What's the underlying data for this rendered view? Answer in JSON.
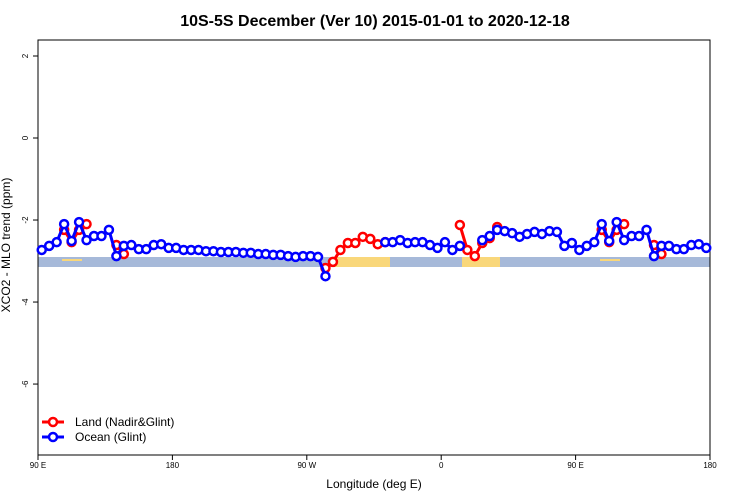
{
  "chart_data": {
    "type": "line",
    "title": "10S-5S December (Ver 10)   2015-01-01 to 2020-12-18",
    "x_label": "Longitude (deg E)",
    "y_label": "XCO2 - MLO trend (ppm)",
    "x": [
      92.5,
      97.5,
      102.5,
      107.5,
      112.5,
      117.5,
      122.5,
      127.5,
      132.5,
      137.5,
      142.5,
      147.5,
      152.5,
      157.5,
      162.5,
      167.5,
      172.5,
      177.5,
      182.5,
      187.5,
      192.5,
      197.5,
      202.5,
      207.5,
      212.5,
      217.5,
      222.5,
      227.5,
      232.5,
      237.5,
      242.5,
      247.5,
      252.5,
      257.5,
      262.5,
      267.5,
      272.5,
      277.5,
      282.5,
      287.5,
      292.5,
      297.5,
      302.5,
      307.5,
      312.5,
      317.5,
      322.5,
      327.5,
      332.5,
      337.5,
      342.5,
      347.5,
      352.5,
      357.5,
      362.5,
      367.5,
      372.5,
      377.5,
      382.5,
      387.5,
      392.5,
      397.5,
      402.5,
      407.5,
      412.5,
      417.5,
      422.5,
      427.5,
      432.5,
      437.5,
      442.5,
      447.5,
      452.5,
      457.5,
      462.5,
      467.5,
      472.5,
      477.5,
      482.5,
      487.5,
      492.5,
      497.5,
      502.5,
      507.5,
      512.5,
      517.5,
      522.5,
      527.5,
      532.5,
      537.5
    ],
    "series": [
      {
        "name": "Land (Nadir&Glint)",
        "color": "#ff0000",
        "values": [
          null,
          null,
          null,
          -2.24,
          -2.54,
          -2.24,
          -2.1,
          null,
          null,
          null,
          -2.61,
          -2.83,
          null,
          null,
          null,
          null,
          null,
          null,
          null,
          null,
          null,
          null,
          null,
          null,
          null,
          null,
          null,
          null,
          null,
          null,
          null,
          null,
          null,
          null,
          null,
          null,
          null,
          null,
          -3.17,
          -3.02,
          -2.73,
          -2.56,
          -2.56,
          -2.41,
          -2.46,
          -2.59,
          -2.54,
          null,
          null,
          null,
          null,
          null,
          null,
          null,
          null,
          null,
          -2.12,
          -2.73,
          -2.88,
          -2.56,
          -2.44,
          -2.17,
          null,
          null,
          null,
          null,
          null,
          null,
          null,
          null,
          null,
          null,
          null,
          null,
          null,
          -2.24,
          -2.54,
          -2.24,
          -2.1,
          null,
          null,
          null,
          -2.61,
          -2.83,
          null,
          null,
          null,
          null,
          null,
          null
        ]
      },
      {
        "name": "Ocean (Glint)",
        "color": "#0000ff",
        "values": [
          -2.73,
          -2.63,
          -2.54,
          -2.1,
          -2.51,
          -2.05,
          -2.49,
          -2.39,
          -2.39,
          -2.24,
          -2.88,
          -2.63,
          -2.61,
          -2.71,
          -2.71,
          -2.61,
          -2.59,
          -2.68,
          -2.68,
          -2.73,
          -2.73,
          -2.73,
          -2.76,
          -2.76,
          -2.78,
          -2.78,
          -2.78,
          -2.8,
          -2.8,
          -2.83,
          -2.83,
          -2.85,
          -2.85,
          -2.88,
          -2.9,
          -2.88,
          -2.88,
          -2.9,
          -3.37,
          null,
          null,
          null,
          null,
          null,
          null,
          null,
          -2.54,
          -2.54,
          -2.49,
          -2.56,
          -2.54,
          -2.54,
          -2.61,
          -2.68,
          -2.54,
          -2.73,
          -2.63,
          null,
          null,
          -2.49,
          -2.39,
          -2.24,
          -2.27,
          -2.32,
          -2.41,
          -2.34,
          -2.29,
          -2.34,
          -2.27,
          -2.29,
          -2.63,
          -2.56,
          -2.73,
          -2.63,
          -2.54,
          -2.1,
          -2.51,
          -2.05,
          -2.49,
          -2.39,
          -2.39,
          -2.24,
          -2.88,
          -2.63,
          -2.63,
          -2.71,
          -2.71,
          -2.61,
          -2.59,
          -2.68
        ]
      }
    ],
    "xlim": [
      90,
      540
    ],
    "xticks": [
      {
        "value": 90,
        "label": "90 E"
      },
      180,
      {
        "value": 270,
        "label": "90 W"
      },
      {
        "value": 360,
        "label": "0"
      },
      {
        "value": 450,
        "label": "90 E"
      },
      {
        "value": 540,
        "label": "180"
      }
    ],
    "ylim": [
      -7.73,
      2.39
    ],
    "yticks": [
      2,
      0,
      -2,
      -4,
      -6
    ],
    "legend": "bottomleft"
  }
}
